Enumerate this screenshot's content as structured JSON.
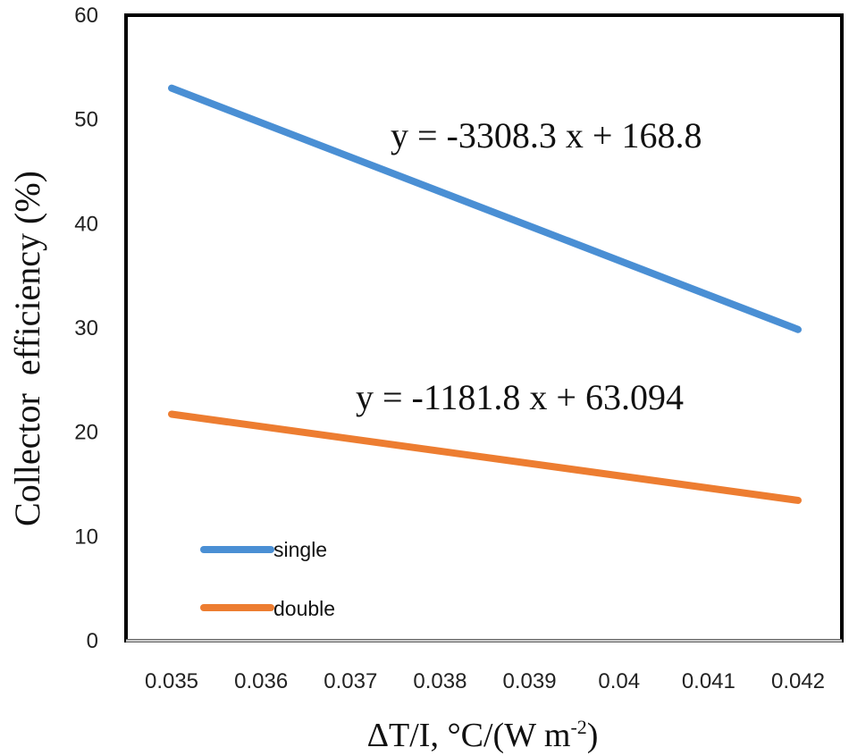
{
  "chart_data": {
    "type": "line",
    "title": "",
    "xlabel": "ΔT/I, °C/(W m",
    "xlabel_sup": "-2",
    "xlabel_close": ")",
    "ylabel": "Collector  efficiency (%)",
    "xlim": [
      0.035,
      0.042
    ],
    "ylim": [
      0,
      60
    ],
    "x_ticks": [
      "0.035",
      "0.036",
      "0.037",
      "0.038",
      "0.039",
      "0.04",
      "0.041",
      "0.042"
    ],
    "y_ticks": [
      "0",
      "10",
      "20",
      "30",
      "40",
      "50",
      "60"
    ],
    "grid": false,
    "legend_position": "bottom-left",
    "series": [
      {
        "name": "single",
        "color": "#4a8fd4",
        "x": [
          0.035,
          0.042
        ],
        "y": [
          53.0,
          29.85
        ],
        "equation": "y = -3308.3 x + 168.8"
      },
      {
        "name": "double",
        "color": "#ed7d31",
        "x": [
          0.035,
          0.042
        ],
        "y": [
          21.73,
          13.46
        ],
        "equation": "y = -1181.8 x + 63.094"
      }
    ]
  }
}
